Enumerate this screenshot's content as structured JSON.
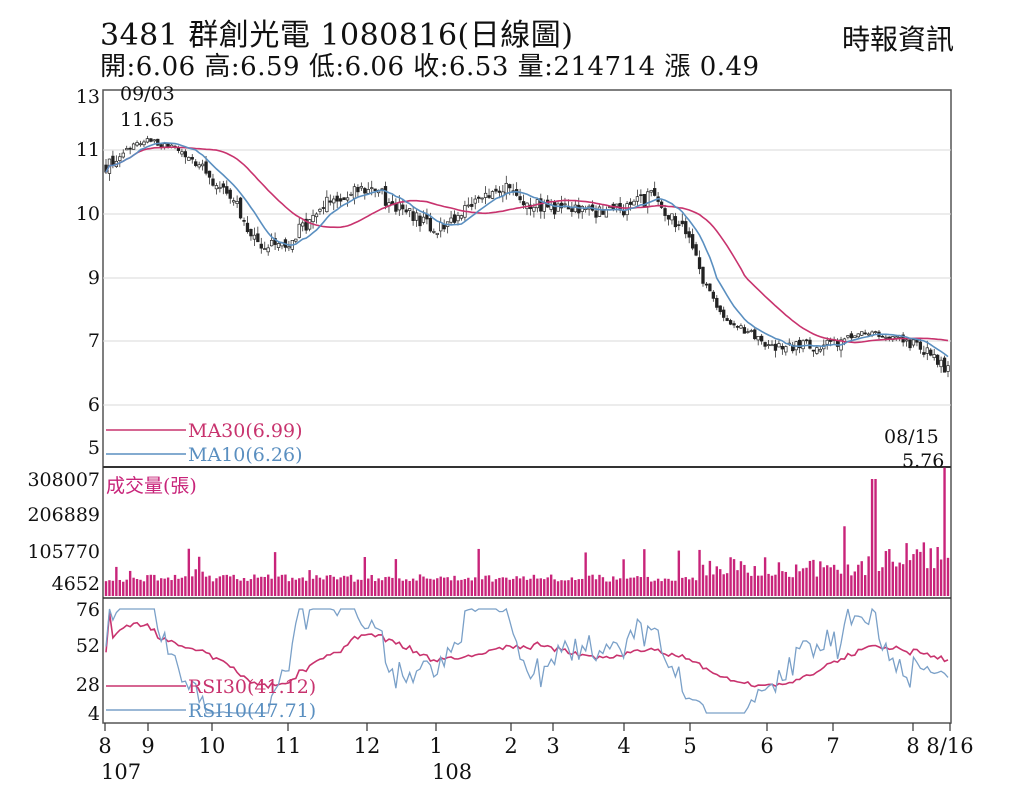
{
  "header": {
    "title": "3481  群創光電 1080816(日線圖)",
    "quote": "開:6.06 高:6.59 低:6.06 收:6.53 量:214714 漲 0.49",
    "source": "時報資訊"
  },
  "colors": {
    "ma30": "#c8336e",
    "ma10": "#5a8fc0",
    "volume": "#c8247a",
    "rsi30": "#c8336e",
    "rsi10": "#7aa0c8",
    "candle": "#222222"
  },
  "chart_data": [
    {
      "type": "candlestick",
      "ylim": [
        5,
        13
      ],
      "y_ticks": [
        "13",
        "11",
        "10",
        "9",
        "7",
        "6",
        "5"
      ],
      "x_ticks": [
        "8",
        "9",
        "10",
        "11",
        "12",
        "1",
        "2",
        "3",
        "4",
        "5",
        "6",
        "7",
        "8",
        "8/16"
      ],
      "x_year_labels": [
        "107",
        "108"
      ],
      "annotations": [
        {
          "date": "09/03",
          "value": "11.65",
          "label": "09/03",
          "value_label": "11.65"
        },
        {
          "date": "08/15",
          "value": "5.76",
          "label": "08/15",
          "value_label": "5.76"
        }
      ],
      "series": [
        {
          "name": "MA30",
          "legend": "MA30(6.99)"
        },
        {
          "name": "MA10",
          "legend": "MA10(6.26)"
        }
      ],
      "close_path": [
        [
          "8",
          10.75
        ],
        [
          "9",
          11.35
        ],
        [
          "9",
          11.05
        ],
        [
          "10",
          10.55
        ],
        [
          "10",
          10.15
        ],
        [
          "10",
          9.55
        ],
        [
          "11",
          9.55
        ],
        [
          "11",
          10.15
        ],
        [
          "12",
          10.45
        ],
        [
          "12",
          10.1
        ],
        [
          "1",
          9.75
        ],
        [
          "1",
          10.15
        ],
        [
          "2",
          10.4
        ],
        [
          "2",
          10.15
        ],
        [
          "3",
          10.1
        ],
        [
          "3",
          10.05
        ],
        [
          "4",
          10.05
        ],
        [
          "4",
          10.3
        ],
        [
          "5",
          9.6
        ],
        [
          "5",
          7.7
        ],
        [
          "6",
          6.95
        ],
        [
          "6",
          6.95
        ],
        [
          "7",
          6.95
        ],
        [
          "7",
          7.3
        ],
        [
          "8",
          6.85
        ],
        [
          "8/16",
          6.53
        ]
      ]
    },
    {
      "type": "bar",
      "title": "成交量(張)",
      "y_ticks": [
        "308007",
        "206889",
        "105770",
        "4652"
      ],
      "ylim": [
        4652,
        308007
      ]
    },
    {
      "type": "line",
      "y_ticks": [
        "76",
        "52",
        "28",
        "4"
      ],
      "ylim": [
        4,
        76
      ],
      "series": [
        {
          "name": "RSI30",
          "legend": "RSI30(41.12)"
        },
        {
          "name": "RSI10",
          "legend": "RSI10(47.71)"
        }
      ]
    }
  ]
}
